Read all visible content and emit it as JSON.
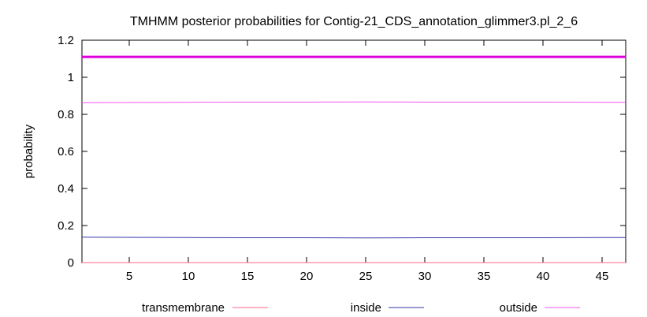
{
  "chart_data": {
    "type": "line",
    "title": "TMHMM posterior probabilities for Contig-21_CDS_annotation_glimmer3.pl_2_6",
    "xlabel": "",
    "ylabel": "probability",
    "xlim": [
      1,
      47
    ],
    "ylim": [
      0,
      1.2
    ],
    "x_ticks": [
      5,
      10,
      15,
      20,
      25,
      30,
      35,
      40,
      45
    ],
    "y_ticks": [
      0,
      0.2,
      0.4,
      0.6,
      0.8,
      1,
      1.2
    ],
    "y_tick_labels": [
      "0",
      "0.2",
      "0.4",
      "0.6",
      "0.8",
      "1",
      "1.2"
    ],
    "grid": false,
    "legend_position": "bottom",
    "reference_line": {
      "y": 1.11,
      "color": "#dd00dd"
    },
    "series": [
      {
        "name": "transmembrane",
        "color": "#ff6688",
        "x": [
          1,
          47
        ],
        "y": [
          0,
          0
        ]
      },
      {
        "name": "inside",
        "color": "#3333aa",
        "x": [
          1,
          5,
          10,
          15,
          20,
          25,
          30,
          35,
          40,
          45,
          47
        ],
        "y": [
          0.137,
          0.136,
          0.135,
          0.134,
          0.134,
          0.133,
          0.134,
          0.134,
          0.134,
          0.135,
          0.135
        ]
      },
      {
        "name": "outside",
        "color": "#ee55ee",
        "x": [
          1,
          5,
          10,
          15,
          20,
          25,
          30,
          35,
          40,
          45,
          47
        ],
        "y": [
          0.863,
          0.864,
          0.865,
          0.866,
          0.866,
          0.867,
          0.866,
          0.866,
          0.866,
          0.865,
          0.865
        ]
      }
    ]
  }
}
